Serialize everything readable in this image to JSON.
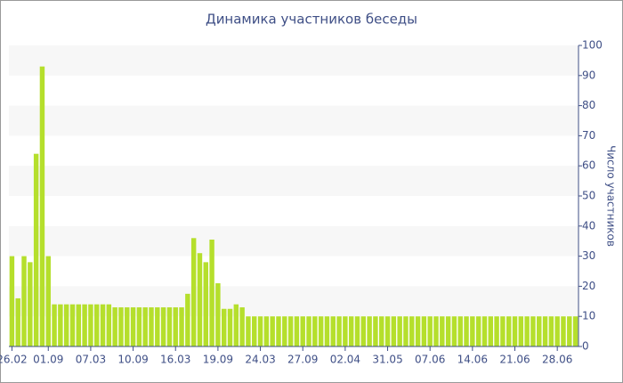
{
  "chart_data": {
    "type": "bar",
    "title": "Динамика участников беседы",
    "y_axis_label": "Число участников",
    "categories": [
      "26.02",
      null,
      null,
      null,
      null,
      null,
      "01.09",
      null,
      null,
      null,
      null,
      null,
      null,
      "07.03",
      null,
      null,
      null,
      null,
      null,
      null,
      "10.09",
      null,
      null,
      null,
      null,
      null,
      null,
      "16.03",
      null,
      null,
      null,
      null,
      null,
      null,
      "19.09",
      null,
      null,
      null,
      null,
      null,
      null,
      "24.03",
      null,
      null,
      null,
      null,
      null,
      null,
      "27.09",
      null,
      null,
      null,
      null,
      null,
      null,
      "02.04",
      null,
      null,
      null,
      null,
      null,
      null,
      "31.05",
      null,
      null,
      null,
      null,
      null,
      null,
      "07.06",
      null,
      null,
      null,
      null,
      null,
      null,
      "14.06",
      null,
      null,
      null,
      null,
      null,
      null,
      "21.06",
      null,
      null,
      null,
      null,
      null,
      null,
      "28.06",
      null,
      null,
      null
    ],
    "values": [
      30,
      16,
      30,
      28,
      64,
      93,
      30,
      14,
      14,
      14,
      14,
      14,
      14,
      14,
      14,
      14,
      14,
      13,
      13,
      13,
      13,
      13,
      13,
      13,
      13,
      13,
      13,
      13,
      13,
      17.5,
      36,
      31,
      28,
      35.5,
      21,
      12.5,
      12.5,
      14,
      13,
      10,
      10,
      10,
      10,
      10,
      10,
      10,
      10,
      10,
      10,
      10,
      10,
      10,
      10,
      10,
      10,
      10,
      10,
      10,
      10,
      10,
      10,
      10,
      10,
      10,
      10,
      10,
      10,
      10,
      10,
      10,
      10,
      10,
      10,
      10,
      10,
      10,
      10,
      10,
      10,
      10,
      10,
      10,
      10,
      10,
      10,
      10,
      10,
      10,
      10,
      10,
      10,
      10,
      10,
      10
    ],
    "color": "#b5df2c",
    "ylim": [
      0,
      100
    ],
    "yticks": [
      0,
      10,
      20,
      30,
      40,
      50,
      60,
      70,
      80,
      90,
      100
    ],
    "grid": "bands"
  }
}
